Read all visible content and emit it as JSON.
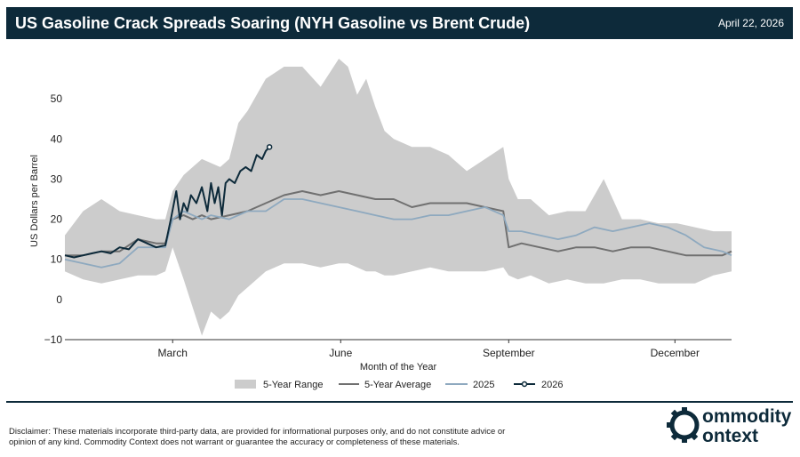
{
  "header": {
    "title": "US Gasoline Crack Spreads Soaring (NYH Gasoline vs Brent Crude)",
    "date": "April 22, 2026"
  },
  "footer": {
    "disclaimer": "Disclaimer: These materials incorporate third-party data, are provided for informational purposes only, and do not constitute advice or opinion of any kind. Commodity Context does not warrant or guarantee the accuracy or completeness of these materials.",
    "logo_line1": "ommodity",
    "logo_line2": "ontext"
  },
  "colors": {
    "header_bg": "#0d2a3a",
    "range_fill": "#cccccc",
    "avg_line": "#707070",
    "line_2025": "#8ea9bf",
    "line_2026": "#0d2a3a"
  },
  "chart_data": {
    "type": "area",
    "title": "",
    "xlabel": "Month of the Year",
    "ylabel": "US Dollars per Barrel",
    "xlim": [
      0,
      365
    ],
    "ylim": [
      -10,
      60
    ],
    "yticks": [
      -10,
      0,
      10,
      20,
      30,
      40,
      50
    ],
    "xticks": [
      {
        "day": 59,
        "label": "March"
      },
      {
        "day": 151,
        "label": "June"
      },
      {
        "day": 243,
        "label": "September"
      },
      {
        "day": 334,
        "label": "December"
      }
    ],
    "grid": false,
    "legend_position": "bottom",
    "legend": [
      "5-Year Range",
      "5-Year Average",
      "2025",
      "2026"
    ],
    "x_unit": "day of year",
    "range": {
      "name": "5-Year Range",
      "x": [
        0,
        10,
        20,
        30,
        40,
        50,
        55,
        59,
        65,
        70,
        75,
        80,
        85,
        90,
        95,
        100,
        110,
        120,
        130,
        140,
        150,
        155,
        160,
        165,
        170,
        175,
        180,
        190,
        200,
        210,
        220,
        230,
        240,
        243,
        248,
        255,
        265,
        275,
        285,
        295,
        305,
        315,
        325,
        335,
        345,
        355,
        365
      ],
      "low": [
        7,
        5,
        4,
        5,
        6,
        6,
        7,
        13,
        5,
        -2,
        -9,
        -3,
        -5,
        -3,
        1,
        3,
        7,
        9,
        9,
        8,
        9,
        9,
        8,
        7,
        7,
        6,
        6,
        7,
        8,
        7,
        7,
        7,
        8,
        6,
        5,
        6,
        4,
        5,
        4,
        4,
        5,
        5,
        4,
        4,
        4,
        6,
        7
      ],
      "high": [
        16,
        22,
        25,
        22,
        21,
        20,
        20,
        27,
        31,
        33,
        35,
        34,
        33,
        35,
        44,
        47,
        55,
        58,
        58,
        53,
        60,
        58,
        51,
        55,
        48,
        42,
        40,
        38,
        38,
        36,
        32,
        35,
        38,
        30,
        25,
        25,
        21,
        22,
        22,
        30,
        20,
        20,
        19,
        19,
        18,
        17,
        17
      ]
    },
    "series": [
      {
        "name": "5-Year Average",
        "x": [
          0,
          10,
          20,
          30,
          40,
          50,
          55,
          59,
          65,
          70,
          75,
          80,
          90,
          100,
          110,
          120,
          130,
          140,
          150,
          160,
          170,
          180,
          190,
          200,
          210,
          220,
          230,
          240,
          243,
          250,
          260,
          270,
          280,
          290,
          300,
          310,
          320,
          330,
          340,
          350,
          360,
          365
        ],
        "values": [
          11,
          11,
          12,
          12,
          15,
          14,
          14,
          20,
          21,
          20,
          21,
          20,
          21,
          22,
          24,
          26,
          27,
          26,
          27,
          26,
          25,
          25,
          23,
          24,
          24,
          24,
          23,
          22,
          13,
          14,
          13,
          12,
          13,
          13,
          12,
          13,
          13,
          12,
          11,
          11,
          11,
          12
        ]
      },
      {
        "name": "2025",
        "x": [
          0,
          10,
          20,
          30,
          40,
          50,
          55,
          59,
          65,
          70,
          75,
          80,
          90,
          100,
          110,
          120,
          130,
          140,
          150,
          160,
          170,
          180,
          190,
          200,
          210,
          220,
          230,
          240,
          243,
          250,
          260,
          270,
          280,
          290,
          300,
          310,
          320,
          330,
          340,
          350,
          360,
          365
        ],
        "values": [
          10,
          9,
          8,
          9,
          13,
          13,
          13,
          20,
          22,
          21,
          20,
          21,
          20,
          22,
          22,
          25,
          25,
          24,
          23,
          22,
          21,
          20,
          20,
          21,
          21,
          22,
          23,
          21,
          17,
          17,
          16,
          15,
          16,
          18,
          17,
          18,
          19,
          18,
          16,
          13,
          12,
          11
        ]
      },
      {
        "name": "2026",
        "x": [
          0,
          5,
          10,
          15,
          20,
          25,
          30,
          35,
          40,
          45,
          50,
          55,
          58,
          61,
          63,
          65,
          67,
          69,
          72,
          75,
          78,
          80,
          82,
          84,
          86,
          88,
          90,
          93,
          96,
          99,
          102,
          105,
          108,
          110,
          112
        ],
        "values": [
          11,
          10.5,
          11,
          11.5,
          12,
          11.5,
          13,
          12.5,
          15,
          14,
          13,
          13.5,
          20,
          27,
          20,
          24,
          22,
          26,
          24,
          28,
          22,
          29,
          24,
          28,
          21,
          29,
          30,
          29,
          32,
          33,
          32,
          36,
          35,
          37,
          38
        ]
      }
    ]
  }
}
